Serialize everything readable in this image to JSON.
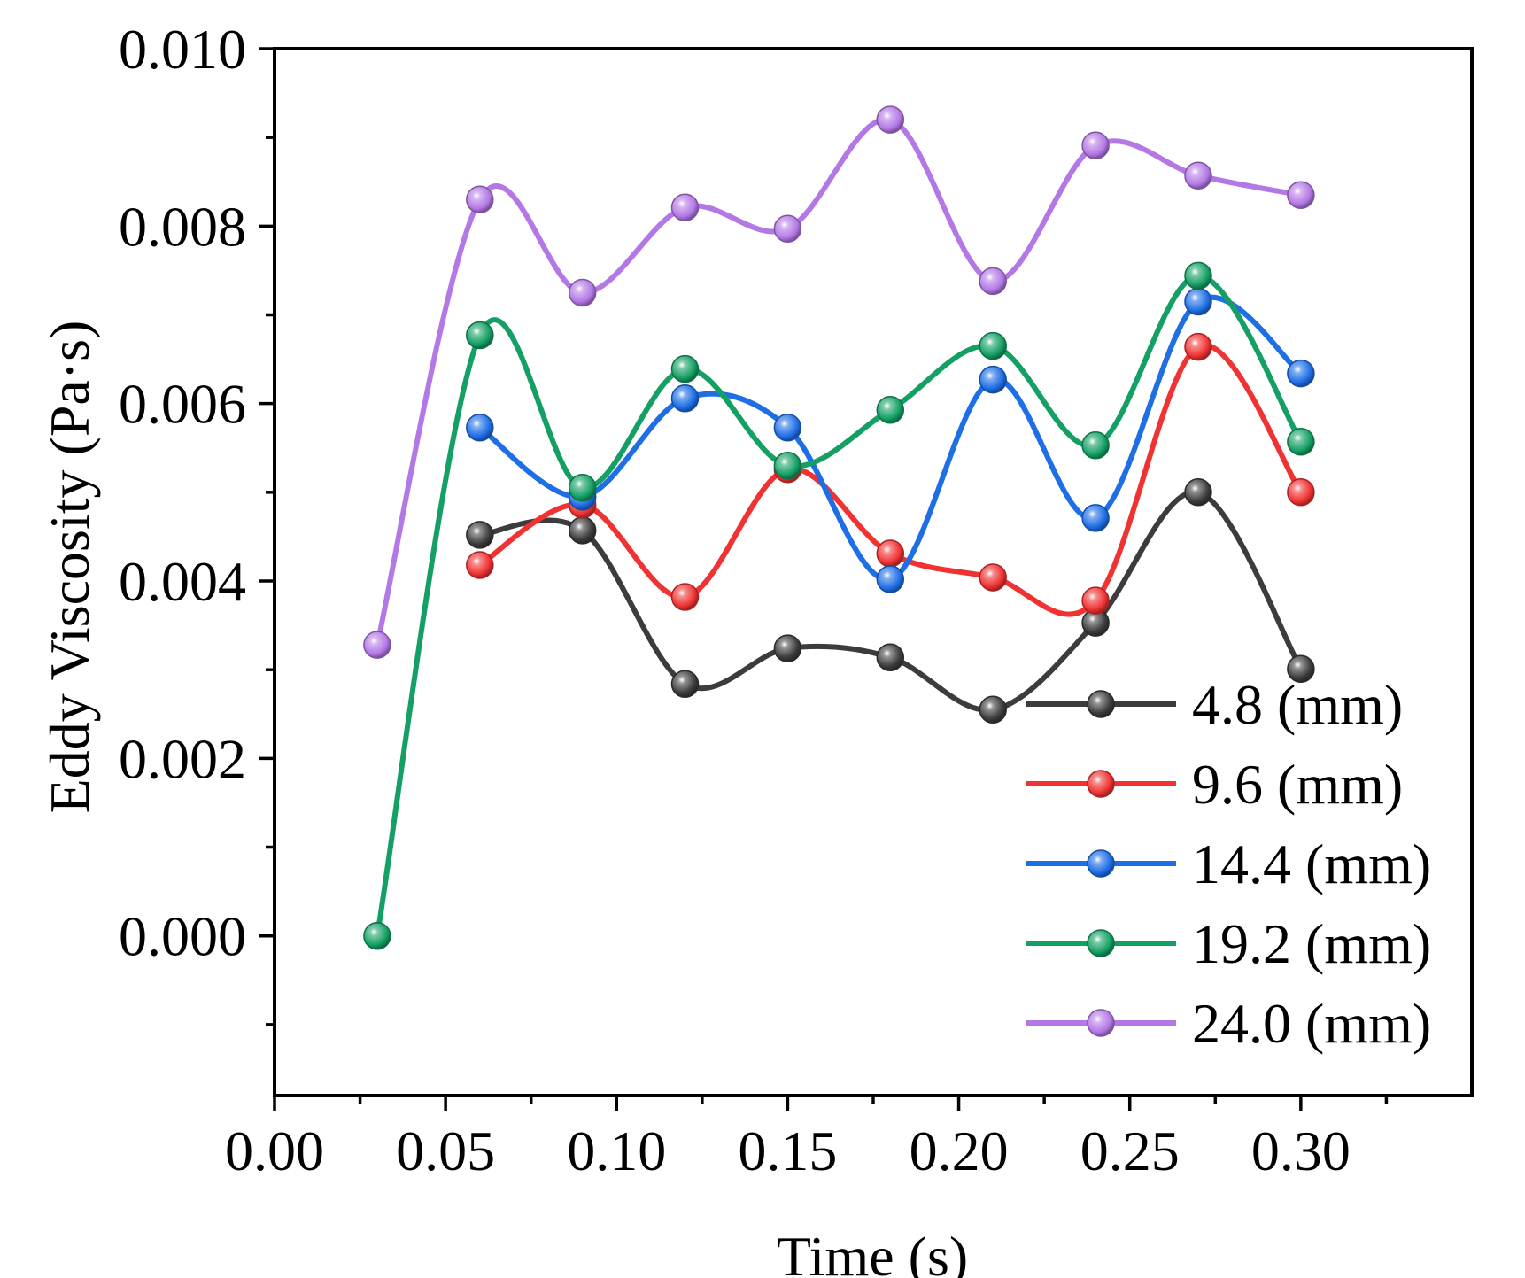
{
  "chart_data": {
    "type": "line",
    "xlabel": "Time (s)",
    "ylabel": "Eddy Viscosity (Pa·s)",
    "xlim": [
      0.0,
      0.35
    ],
    "ylim": [
      -0.0018,
      0.01
    ],
    "xticks": [
      0.0,
      0.05,
      0.1,
      0.15,
      0.2,
      0.25,
      0.3
    ],
    "xtick_labels": [
      "0.00",
      "0.05",
      "0.10",
      "0.15",
      "0.20",
      "0.25",
      "0.30"
    ],
    "yticks": [
      0.0,
      0.002,
      0.004,
      0.006,
      0.008,
      0.01
    ],
    "ytick_labels": [
      "0.000",
      "0.002",
      "0.004",
      "0.006",
      "0.008",
      "0.010"
    ],
    "grid": false,
    "legend_position": "bottom-right",
    "series": [
      {
        "name": "4.8 (mm)",
        "color": "#3c3c3c",
        "x": [
          0.06,
          0.09,
          0.12,
          0.15,
          0.18,
          0.21,
          0.24,
          0.27,
          0.3
        ],
        "y": [
          0.00452,
          0.00457,
          0.00284,
          0.00324,
          0.00314,
          0.00255,
          0.00353,
          0.005,
          0.00301
        ]
      },
      {
        "name": "9.6 (mm)",
        "color": "#f03232",
        "x": [
          0.06,
          0.09,
          0.12,
          0.15,
          0.18,
          0.21,
          0.24,
          0.27,
          0.3
        ],
        "y": [
          0.00418,
          0.00486,
          0.00382,
          0.00526,
          0.00431,
          0.00404,
          0.00378,
          0.00664,
          0.005
        ]
      },
      {
        "name": "14.4 (mm)",
        "color": "#1e6ee6",
        "x": [
          0.06,
          0.09,
          0.12,
          0.15,
          0.18,
          0.21,
          0.24,
          0.27,
          0.3
        ],
        "y": [
          0.00573,
          0.00495,
          0.00606,
          0.00573,
          0.00402,
          0.00627,
          0.00471,
          0.00715,
          0.00634
        ]
      },
      {
        "name": "19.2 (mm)",
        "color": "#14a064",
        "x": [
          0.03,
          0.06,
          0.09,
          0.12,
          0.15,
          0.18,
          0.21,
          0.24,
          0.27,
          0.3
        ],
        "y": [
          0.0,
          0.00677,
          0.00505,
          0.00639,
          0.0053,
          0.00593,
          0.00665,
          0.00553,
          0.00744,
          0.00557
        ]
      },
      {
        "name": "24.0 (mm)",
        "color": "#b478e6",
        "x": [
          0.03,
          0.06,
          0.09,
          0.12,
          0.15,
          0.18,
          0.21,
          0.24,
          0.27,
          0.3
        ],
        "y": [
          0.00328,
          0.0083,
          0.00725,
          0.00821,
          0.00797,
          0.0092,
          0.00738,
          0.00891,
          0.00857,
          0.00835
        ]
      }
    ]
  }
}
